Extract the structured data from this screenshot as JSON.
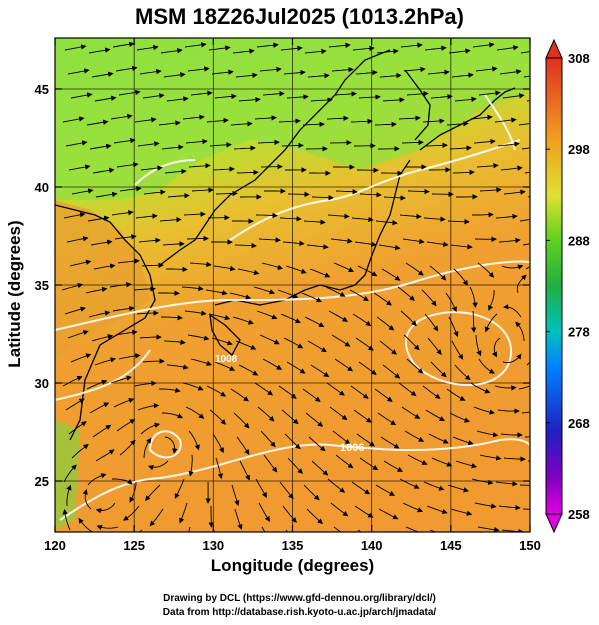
{
  "title": "MSM 18Z26Jul2025 (1013.2hPa)",
  "xaxis": {
    "label": "Longitude (degrees)",
    "ticks": [
      "120",
      "125",
      "130",
      "135",
      "140",
      "145",
      "150"
    ],
    "range": [
      120,
      150
    ]
  },
  "yaxis": {
    "label": "Latitude  (degrees)",
    "ticks": [
      "25",
      "30",
      "35",
      "40",
      "45"
    ],
    "range": [
      22.4,
      47.6
    ]
  },
  "colorbar": {
    "ticks": [
      "308",
      "298",
      "288",
      "278",
      "268",
      "258"
    ],
    "range": [
      258,
      308
    ],
    "colors": [
      "#e000e0",
      "#2020c0",
      "#00a0ff",
      "#00c0a0",
      "#20c020",
      "#a0e020",
      "#f0e030",
      "#f0a020",
      "#f08020",
      "#e03020"
    ]
  },
  "contours": {
    "labels": [
      "1006",
      "1008"
    ]
  },
  "credits": {
    "line1": "Drawing by DCL (https://www.gfd-dennou.org/library/dcl/)",
    "line2": "Data from http://database.rish.kyoto-u.ac.jp/arch/jmadata/"
  }
}
